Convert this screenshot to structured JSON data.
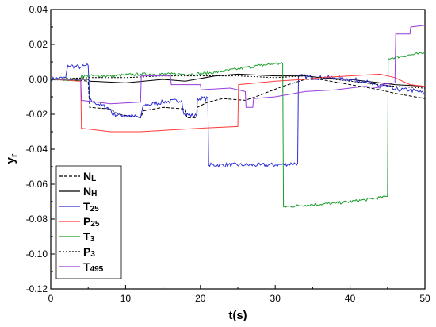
{
  "chart_data": {
    "type": "line",
    "xlabel": "t(s)",
    "ylabel_main": "y",
    "ylabel_sub": "r",
    "xlim": [
      0,
      50
    ],
    "ylim": [
      -0.12,
      0.04
    ],
    "xticks": [
      0,
      10,
      20,
      30,
      40,
      50
    ],
    "yticks": [
      0.04,
      0.02,
      0.0,
      -0.02,
      -0.04,
      -0.06,
      -0.08,
      -0.1,
      -0.12
    ],
    "xtick_labels": [
      "0",
      "10",
      "20",
      "30",
      "40",
      "50"
    ],
    "ytick_labels": [
      "0.04",
      "0.02",
      "0.00",
      "-0.02",
      "-0.04",
      "-0.06",
      "-0.08",
      "-0.10",
      "-0.12"
    ],
    "grid": false,
    "legend_position": "bottom-left",
    "series": [
      {
        "name_main": "N",
        "name_sub": "L",
        "color": "#000000",
        "dash": "4 2",
        "points": [
          [
            0,
            0.0
          ],
          [
            2,
            0.0
          ],
          [
            5,
            -0.001
          ],
          [
            5.2,
            -0.016
          ],
          [
            8,
            -0.017
          ],
          [
            9,
            -0.02
          ],
          [
            12,
            -0.022
          ],
          [
            12.4,
            -0.018
          ],
          [
            15,
            -0.016
          ],
          [
            18,
            -0.017
          ],
          [
            18.2,
            -0.022
          ],
          [
            19.5,
            -0.022
          ],
          [
            19.6,
            -0.016
          ],
          [
            21,
            -0.013
          ],
          [
            23,
            -0.011
          ],
          [
            26,
            -0.012
          ],
          [
            28,
            -0.009
          ],
          [
            31,
            -0.004
          ],
          [
            34,
            0.0
          ],
          [
            36,
            0.0
          ],
          [
            40,
            -0.003
          ],
          [
            44,
            -0.006
          ],
          [
            46,
            -0.008
          ],
          [
            50,
            -0.011
          ]
        ]
      },
      {
        "name_main": "N",
        "name_sub": "H",
        "color": "#000000",
        "dash": "",
        "points": [
          [
            0,
            0.0
          ],
          [
            5,
            0.0
          ],
          [
            5.2,
            -0.001
          ],
          [
            10,
            -0.002
          ],
          [
            15,
            0.0
          ],
          [
            18,
            -0.001
          ],
          [
            22,
            0.002
          ],
          [
            25,
            0.003
          ],
          [
            30,
            0.002
          ],
          [
            34,
            0.002
          ],
          [
            36,
            0.001
          ],
          [
            40,
            0.0
          ],
          [
            44,
            -0.002
          ],
          [
            46,
            -0.003
          ],
          [
            50,
            -0.004
          ]
        ]
      },
      {
        "name_main": "T",
        "name_sub": "25",
        "color": "#2b2bd6",
        "dash": "",
        "noise": 0.0012,
        "points": [
          [
            0,
            0.0
          ],
          [
            2,
            0.001
          ],
          [
            2.3,
            0.008
          ],
          [
            4,
            0.007
          ],
          [
            5,
            0.008
          ],
          [
            5.2,
            -0.012
          ],
          [
            8,
            -0.017
          ],
          [
            8.2,
            -0.02
          ],
          [
            11,
            -0.021
          ],
          [
            12,
            -0.022
          ],
          [
            12.4,
            -0.015
          ],
          [
            15,
            -0.013
          ],
          [
            17.5,
            -0.012
          ],
          [
            17.8,
            -0.02
          ],
          [
            19.5,
            -0.021
          ],
          [
            19.6,
            -0.011
          ],
          [
            21,
            -0.011
          ],
          [
            21.1,
            -0.049
          ],
          [
            26,
            -0.049
          ],
          [
            28,
            -0.049
          ],
          [
            30,
            -0.049
          ],
          [
            33,
            -0.048
          ],
          [
            33.1,
            0.002
          ],
          [
            35,
            0.001
          ],
          [
            38,
            0.001
          ],
          [
            40,
            0.0
          ],
          [
            42,
            -0.001
          ],
          [
            43,
            -0.003
          ],
          [
            45,
            -0.004
          ],
          [
            46,
            -0.006
          ],
          [
            48,
            -0.006
          ],
          [
            50,
            -0.008
          ]
        ]
      },
      {
        "name_main": "P",
        "name_sub": "25",
        "color": "#ff3b3b",
        "dash": "",
        "points": [
          [
            0,
            0.0
          ],
          [
            4,
            -0.001
          ],
          [
            4.1,
            -0.028
          ],
          [
            8,
            -0.03
          ],
          [
            12,
            -0.03
          ],
          [
            16,
            -0.029
          ],
          [
            20,
            -0.028
          ],
          [
            25,
            -0.027
          ],
          [
            25.1,
            -0.003
          ],
          [
            30,
            -0.001
          ],
          [
            34,
            0.0
          ],
          [
            36,
            0.001
          ],
          [
            40,
            0.002
          ],
          [
            44,
            0.003
          ],
          [
            46,
            0.001
          ],
          [
            48,
            -0.003
          ],
          [
            50,
            -0.004
          ]
        ]
      },
      {
        "name_main": "T",
        "name_sub": "3",
        "color": "#1a9c2a",
        "dash": "",
        "noise": 0.0008,
        "points": [
          [
            0,
            0.0
          ],
          [
            4,
            0.0
          ],
          [
            4.1,
            0.002
          ],
          [
            8,
            0.002
          ],
          [
            12,
            0.003
          ],
          [
            16,
            0.003
          ],
          [
            19,
            0.003
          ],
          [
            22,
            0.004
          ],
          [
            25,
            0.006
          ],
          [
            28,
            0.008
          ],
          [
            30,
            0.009
          ],
          [
            31,
            0.009
          ],
          [
            31.1,
            -0.073
          ],
          [
            34,
            -0.072
          ],
          [
            38,
            -0.071
          ],
          [
            42,
            -0.069
          ],
          [
            45,
            -0.067
          ],
          [
            45.1,
            0.012
          ],
          [
            48,
            0.014
          ],
          [
            50,
            0.015
          ]
        ]
      },
      {
        "name_main": "P",
        "name_sub": "3",
        "color": "#000000",
        "dash": "2 2",
        "points": [
          [
            0,
            0.0
          ],
          [
            5,
            0.001
          ],
          [
            10,
            0.001
          ],
          [
            15,
            0.002
          ],
          [
            20,
            0.002
          ],
          [
            25,
            0.002
          ],
          [
            30,
            0.001
          ],
          [
            34,
            0.002
          ],
          [
            38,
            0.0
          ],
          [
            42,
            -0.002
          ],
          [
            46,
            -0.004
          ],
          [
            50,
            -0.005
          ]
        ]
      },
      {
        "name_main": "T",
        "name_sub": "495",
        "color": "#9b3bdc",
        "dash": "",
        "points": [
          [
            0,
            0.0
          ],
          [
            4,
            0.0
          ],
          [
            4.1,
            -0.012
          ],
          [
            8,
            -0.014
          ],
          [
            12,
            -0.013
          ],
          [
            12.1,
            0.002
          ],
          [
            16,
            0.002
          ],
          [
            16.1,
            -0.003
          ],
          [
            20,
            -0.003
          ],
          [
            20.1,
            -0.006
          ],
          [
            24,
            -0.005
          ],
          [
            26,
            -0.007
          ],
          [
            26.1,
            -0.016
          ],
          [
            27,
            -0.016
          ],
          [
            27.1,
            -0.011
          ],
          [
            30,
            -0.01
          ],
          [
            34,
            -0.007
          ],
          [
            38,
            -0.006
          ],
          [
            42,
            -0.004
          ],
          [
            44,
            -0.005
          ],
          [
            44.1,
            -0.003
          ],
          [
            46,
            -0.002
          ],
          [
            46.1,
            0.026
          ],
          [
            48,
            0.026
          ],
          [
            48.1,
            0.03
          ],
          [
            50,
            0.031
          ]
        ]
      }
    ]
  }
}
